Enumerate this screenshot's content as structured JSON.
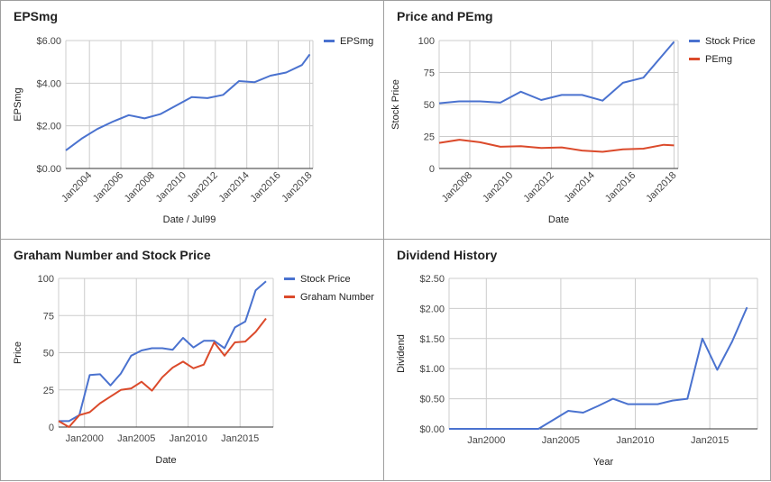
{
  "chart_data": [
    {
      "type": "line",
      "title": "EPSmg",
      "xlabel": "Date / Jul99",
      "ylabel": "EPSmg",
      "ylim": [
        0,
        6
      ],
      "xlim": [
        2002.5,
        2018.2
      ],
      "yticks": [
        0,
        2,
        4,
        6
      ],
      "ytick_labels": [
        "$0.00",
        "$2.00",
        "$4.00",
        "$6.00"
      ],
      "xticks": [
        2004,
        2006,
        2008,
        2010,
        2012,
        2014,
        2016,
        2018
      ],
      "xtick_labels": [
        "Jan2004",
        "Jan2006",
        "Jan2008",
        "Jan2010",
        "Jan2012",
        "Jan2014",
        "Jan2016",
        "Jan2018"
      ],
      "xtick_rotate": true,
      "legend": "right",
      "series": [
        {
          "name": "EPSmg",
          "color": "#4a72cf",
          "x": [
            2002.5,
            2003.5,
            2004.5,
            2005.5,
            2006.5,
            2007.5,
            2008.5,
            2009.5,
            2010.5,
            2011.5,
            2012.5,
            2013.5,
            2014.5,
            2015.5,
            2016.5,
            2017.5,
            2018.0
          ],
          "y": [
            0.85,
            1.4,
            1.85,
            2.2,
            2.5,
            2.35,
            2.55,
            2.95,
            3.35,
            3.3,
            3.45,
            4.1,
            4.05,
            4.35,
            4.5,
            4.85,
            5.35
          ]
        }
      ]
    },
    {
      "type": "line",
      "title": "Price and PEmg",
      "xlabel": "Date",
      "ylabel": "Stock Price",
      "ylim": [
        0,
        100
      ],
      "xlim": [
        2006.5,
        2018.2
      ],
      "yticks": [
        0,
        25,
        50,
        75,
        100
      ],
      "ytick_labels": [
        "0",
        "25",
        "50",
        "75",
        "100"
      ],
      "xticks": [
        2008,
        2010,
        2012,
        2014,
        2016,
        2018
      ],
      "xtick_labels": [
        "Jan2008",
        "Jan2010",
        "Jan2012",
        "Jan2014",
        "Jan2016",
        "Jan2018"
      ],
      "xtick_rotate": true,
      "legend": "right",
      "series": [
        {
          "name": "Stock Price",
          "color": "#4a72cf",
          "x": [
            2006.5,
            2007.5,
            2008.5,
            2009.5,
            2010.5,
            2011.5,
            2012.5,
            2013.5,
            2014.5,
            2015.5,
            2016.5,
            2018.0
          ],
          "y": [
            51,
            52.5,
            52.5,
            51.5,
            60,
            53.5,
            57.5,
            57.5,
            53,
            67,
            71,
            99
          ]
        },
        {
          "name": "PEmg",
          "color": "#db4a2b",
          "x": [
            2006.5,
            2007.5,
            2008.5,
            2009.5,
            2010.5,
            2011.5,
            2012.5,
            2013.5,
            2014.5,
            2015.5,
            2016.5,
            2017.5,
            2018.0
          ],
          "y": [
            20,
            22.5,
            20.5,
            17,
            17.5,
            16,
            16.5,
            14,
            13,
            15,
            15.5,
            18.5,
            18
          ]
        }
      ]
    },
    {
      "type": "line",
      "title": "Graham Number and Stock Price",
      "xlabel": "Date",
      "ylabel": "Price",
      "ylim": [
        0,
        100
      ],
      "xlim": [
        1997.5,
        2018.2
      ],
      "yticks": [
        0,
        25,
        50,
        75,
        100
      ],
      "ytick_labels": [
        "0",
        "25",
        "50",
        "75",
        "100"
      ],
      "xticks": [
        2000,
        2005,
        2010,
        2015
      ],
      "xtick_labels": [
        "Jan2000",
        "Jan2005",
        "Jan2010",
        "Jan2015"
      ],
      "xtick_rotate": false,
      "legend": "right",
      "series": [
        {
          "name": "Stock Price",
          "color": "#4a72cf",
          "x": [
            1997.5,
            1998.5,
            1999.5,
            2000.5,
            2001.5,
            2002.5,
            2003.5,
            2004.5,
            2005.5,
            2006.5,
            2007.5,
            2008.5,
            2009.5,
            2010.5,
            2011.5,
            2012.5,
            2013.5,
            2014.5,
            2015.5,
            2016.5,
            2017.5
          ],
          "y": [
            4,
            4,
            8,
            35,
            35.5,
            28,
            36,
            48,
            51.5,
            53,
            53,
            52,
            60,
            53.5,
            58,
            58,
            53,
            67,
            71,
            92,
            98
          ]
        },
        {
          "name": "Graham Number",
          "color": "#db4a2b",
          "x": [
            1997.5,
            1998.5,
            1999.5,
            2000.5,
            2001.5,
            2002.5,
            2003.5,
            2004.5,
            2005.5,
            2006.5,
            2007.5,
            2008.5,
            2009.5,
            2010.5,
            2011.5,
            2012.5,
            2013.5,
            2014.5,
            2015.5,
            2016.5,
            2017.5
          ],
          "y": [
            4,
            0,
            8,
            10,
            16,
            20.5,
            25,
            26,
            30.5,
            24.5,
            33.5,
            40,
            44,
            39.5,
            42,
            57,
            48,
            57,
            57.5,
            64,
            73
          ]
        }
      ]
    },
    {
      "type": "line",
      "title": "Dividend History",
      "xlabel": "Year",
      "ylabel": "Dividend",
      "ylim": [
        0,
        2.5
      ],
      "xlim": [
        1997.5,
        2018.2
      ],
      "yticks": [
        0,
        0.5,
        1.0,
        1.5,
        2.0,
        2.5
      ],
      "ytick_labels": [
        "$0.00",
        "$0.50",
        "$1.00",
        "$1.50",
        "$2.00",
        "$2.50"
      ],
      "xticks": [
        2000,
        2005,
        2010,
        2015
      ],
      "xtick_labels": [
        "Jan2000",
        "Jan2005",
        "Jan2010",
        "Jan2015"
      ],
      "xtick_rotate": false,
      "legend": "none",
      "series": [
        {
          "name": "",
          "color": "#4a72cf",
          "x": [
            1997.5,
            1998.5,
            1999.5,
            2000.5,
            2001.5,
            2002.5,
            2003.5,
            2004.5,
            2005.5,
            2006.5,
            2007.5,
            2008.5,
            2009.5,
            2010.5,
            2011.5,
            2012.5,
            2013.5,
            2014.5,
            2015.5,
            2016.5,
            2017.5
          ],
          "y": [
            0,
            0,
            0,
            0,
            0,
            0,
            0,
            0.15,
            0.3,
            0.27,
            0.38,
            0.5,
            0.41,
            0.41,
            0.41,
            0.47,
            0.5,
            1.5,
            0.98,
            1.45,
            2.02
          ]
        }
      ]
    }
  ]
}
